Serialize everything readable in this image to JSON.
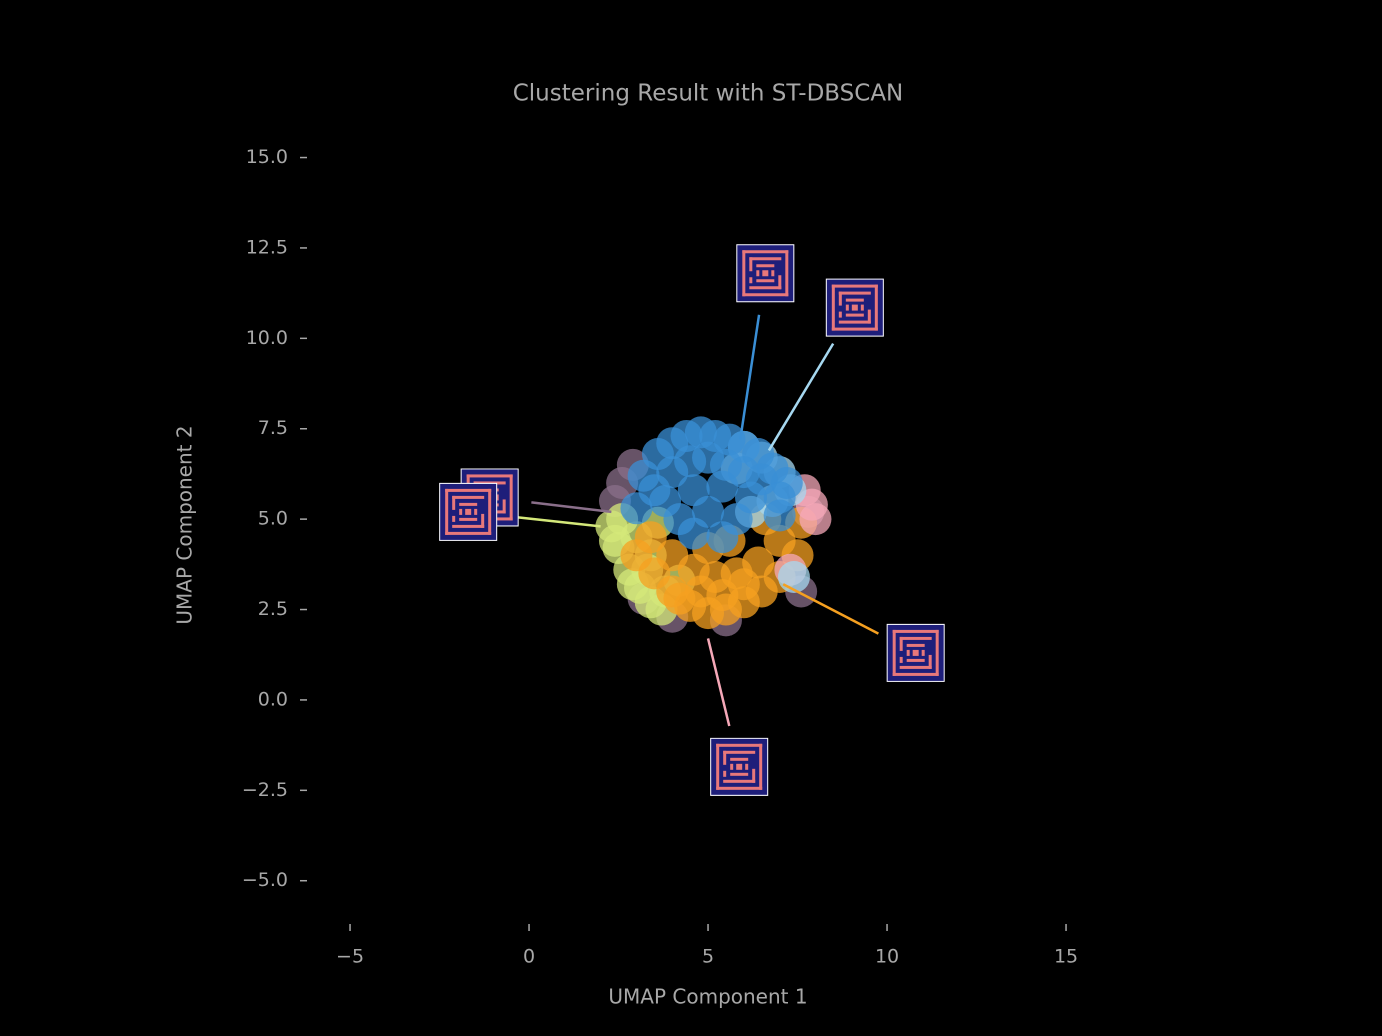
{
  "chart_data": {
    "type": "scatter",
    "title": "Clustering Result with ST-DBSCAN",
    "xlabel": "UMAP Component 1",
    "ylabel": "UMAP Component 2",
    "xlim": [
      -6.3,
      16.2
    ],
    "ylim": [
      -6.1,
      15.9
    ],
    "xticks": [
      {
        "value": -5,
        "label": "−5"
      },
      0,
      5,
      10,
      15
    ],
    "yticks": [
      {
        "value": -5,
        "label": "−5.0"
      },
      {
        "value": -2.5,
        "label": "−2.5"
      },
      {
        "value": 0,
        "label": "0.0"
      },
      {
        "value": 2.5,
        "label": "2.5"
      },
      {
        "value": 5,
        "label": "5.0"
      },
      {
        "value": 7.5,
        "label": "7.5"
      },
      {
        "value": 10,
        "label": "10.0"
      },
      {
        "value": 12.5,
        "label": "12.5"
      },
      {
        "value": 15,
        "label": "15.0"
      }
    ],
    "series": [
      {
        "color": "#8a6f8a",
        "x": [
          2.4,
          2.6,
          2.9,
          4.0,
          5.5,
          7.6,
          7.8,
          3.2
        ],
        "y": [
          5.5,
          6.0,
          6.5,
          2.3,
          2.2,
          3.0,
          5.2,
          2.8
        ]
      },
      {
        "color": "#d4e87a",
        "x": [
          2.3,
          2.5,
          2.8,
          3.1,
          3.4,
          3.7,
          2.6,
          3.0,
          3.4,
          2.4,
          2.9,
          3.3,
          3.8,
          4.2,
          3.6
        ],
        "y": [
          4.8,
          4.2,
          3.6,
          3.1,
          2.7,
          2.5,
          5.0,
          4.5,
          4.0,
          4.4,
          3.2,
          3.6,
          3.0,
          3.3,
          4.9
        ]
      },
      {
        "color": "#f5a020",
        "x": [
          3.0,
          3.5,
          4.0,
          4.5,
          5.0,
          5.5,
          6.0,
          6.5,
          7.0,
          7.5,
          3.4,
          4.0,
          4.6,
          5.2,
          5.8,
          6.4,
          7.0,
          7.6,
          4.2,
          4.8,
          5.4,
          6.0,
          6.6,
          5.0,
          5.6
        ],
        "y": [
          4.0,
          3.5,
          3.0,
          2.6,
          2.4,
          2.5,
          2.7,
          3.0,
          3.4,
          4.0,
          4.5,
          4.0,
          3.6,
          3.4,
          3.5,
          3.8,
          4.4,
          4.9,
          2.8,
          3.0,
          2.9,
          3.2,
          5.0,
          4.2,
          4.4
        ]
      },
      {
        "color": "#f5a8b8",
        "x": [
          7.9,
          8.0,
          7.7,
          7.3
        ],
        "y": [
          5.4,
          5.0,
          5.8,
          3.6
        ]
      },
      {
        "color": "#a6d8f0",
        "x": [
          6.0,
          6.5,
          7.0,
          7.3,
          6.8,
          5.8,
          7.4,
          6.2
        ],
        "y": [
          7.0,
          6.7,
          6.3,
          5.8,
          5.5,
          6.4,
          3.4,
          5.2
        ]
      },
      {
        "color": "#3a8fd6",
        "x": [
          3.2,
          3.6,
          4.0,
          4.4,
          4.8,
          5.2,
          5.6,
          6.0,
          6.4,
          6.8,
          7.2,
          3.5,
          4.0,
          4.5,
          5.0,
          5.5,
          6.0,
          6.5,
          7.0,
          3.0,
          3.8,
          4.6,
          5.4,
          6.2,
          7.0,
          4.2,
          5.0,
          5.8,
          4.6,
          5.4
        ],
        "y": [
          6.2,
          6.8,
          7.1,
          7.3,
          7.4,
          7.3,
          7.2,
          7.0,
          6.8,
          6.4,
          6.0,
          5.8,
          6.3,
          6.6,
          6.7,
          6.5,
          6.3,
          6.1,
          5.6,
          5.3,
          5.5,
          5.8,
          5.9,
          5.6,
          5.1,
          5.0,
          5.2,
          5.0,
          4.6,
          4.5
        ]
      }
    ],
    "annotations": [
      {
        "x": 2.3,
        "y": 5.2,
        "xytext": [
          -1.1,
          5.6
        ],
        "color": "#8a6f8a"
      },
      {
        "x": 2.0,
        "y": 4.8,
        "xytext": [
          -1.7,
          5.2
        ],
        "color": "#d4e87a"
      },
      {
        "x": 5.9,
        "y": 7.2,
        "xytext": [
          6.6,
          11.8
        ],
        "color": "#3a8fd6"
      },
      {
        "x": 6.7,
        "y": 6.9,
        "xytext": [
          9.1,
          10.85
        ],
        "color": "#a6d8f0"
      },
      {
        "x": 7.1,
        "y": 3.2,
        "xytext": [
          10.8,
          1.3
        ],
        "color": "#f5a020"
      },
      {
        "x": 5.0,
        "y": 1.7,
        "xytext": [
          5.87,
          -1.85
        ],
        "color": "#f5a8b8"
      }
    ]
  }
}
